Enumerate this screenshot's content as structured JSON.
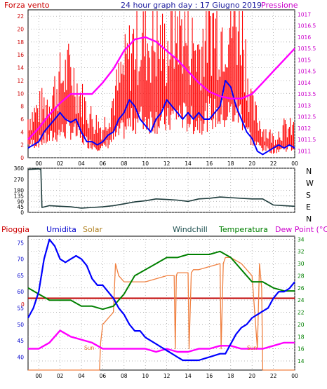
{
  "header": {
    "left": "Forza vento",
    "center": "24 hour graph day : 17 Giugno 2019",
    "right": "Pressione"
  },
  "legend": {
    "pioggia": "Pioggia",
    "umidita": "Umidita",
    "solar": "Solar",
    "windchill": "Windchill",
    "temperatura": "Temperatura",
    "dewpoint": "Dew Point (°C)"
  },
  "direction_labels": [
    "N",
    "W",
    "S",
    "E",
    "N"
  ],
  "annotations": {
    "sun1": "Sun",
    "sun2": "Sun"
  },
  "colors": {
    "wind_gust": "#ff0000",
    "wind_avg": "#0000ff",
    "pressure": "#ff00ff",
    "direction": "#1e3c3c",
    "humidity": "#0000ff",
    "solar": "#f08040",
    "temperature": "#008000",
    "dewpoint": "#ff00ff",
    "rain": "#c00000",
    "left_axis": "#cc0000",
    "right_axis": "#cc00cc",
    "temp_axis": "#008000",
    "humidity_axis": "#0000cc"
  },
  "chart_data": [
    {
      "type": "line",
      "name": "wind_pressure",
      "x_ticks": [
        "00",
        "02",
        "04",
        "06",
        "08",
        "10",
        "12",
        "14",
        "16",
        "18",
        "20",
        "22",
        "00"
      ],
      "y_left_ticks": [
        0,
        2,
        4,
        6,
        8,
        10,
        12,
        14,
        16,
        18,
        20,
        22
      ],
      "ylim_left": [
        0,
        23
      ],
      "y_right_ticks": [
        1011,
        1011.5,
        1012,
        1012.5,
        1013,
        1013.5,
        1014,
        1014.5,
        1015,
        1015.5,
        1016,
        1016.5,
        1017
      ],
      "ylim_right": [
        1010.7,
        1017.2
      ],
      "xlim": [
        -1,
        24
      ],
      "series": [
        {
          "key": "gust",
          "axis": "left",
          "x": [
            -1,
            0,
            1,
            2,
            3,
            4,
            5,
            6,
            7,
            8,
            9,
            10,
            11,
            12,
            13,
            14,
            15,
            16,
            17,
            18,
            19,
            20,
            21,
            22,
            23,
            24
          ],
          "y": [
            4,
            5,
            6,
            8,
            9,
            6,
            4,
            3,
            6,
            9,
            12,
            12,
            12,
            11,
            14,
            12,
            11,
            14,
            13,
            14,
            14,
            5,
            3,
            2,
            3,
            3
          ]
        },
        {
          "key": "avg",
          "axis": "left",
          "x": [
            -1,
            -0.5,
            0,
            0.5,
            1,
            1.5,
            2,
            2.5,
            3,
            3.5,
            4,
            4.5,
            5,
            5.5,
            6,
            6.5,
            7,
            7.5,
            8,
            8.5,
            9,
            9.5,
            10,
            10.5,
            11,
            11.5,
            12,
            12.5,
            13,
            13.5,
            14,
            14.5,
            15,
            15.5,
            16,
            16.5,
            17,
            17.5,
            18,
            18.5,
            19,
            19.5,
            20,
            20.5,
            21,
            21.5,
            22,
            22.5,
            23,
            23.5,
            24
          ],
          "y": [
            1.5,
            2,
            2.5,
            4,
            5,
            6,
            7,
            6,
            5.5,
            6,
            4,
            2.5,
            2.5,
            2,
            2.5,
            3.5,
            4,
            6,
            7,
            9,
            8,
            6,
            5,
            4,
            6,
            7,
            9,
            8,
            7,
            6,
            7,
            6,
            7,
            6,
            6,
            7,
            8,
            12,
            11,
            8,
            6,
            4,
            3,
            1,
            0.5,
            1,
            1.5,
            2,
            1.5,
            2,
            1.5
          ]
        },
        {
          "key": "pressure",
          "axis": "right",
          "x": [
            -1,
            0,
            1,
            2,
            3,
            4,
            5,
            6,
            7,
            8,
            9,
            10,
            11,
            12,
            13,
            14,
            15,
            16,
            17,
            18,
            19,
            20,
            21,
            22,
            23,
            24
          ],
          "y": [
            1011.5,
            1012,
            1012.6,
            1013.1,
            1013.5,
            1013.5,
            1013.5,
            1014,
            1014.6,
            1015.4,
            1015.9,
            1016.0,
            1015.8,
            1015.4,
            1015.0,
            1014.5,
            1014.0,
            1013.6,
            1013.4,
            1013.3,
            1013.3,
            1013.5,
            1014.0,
            1014.5,
            1015.0,
            1015.5
          ]
        }
      ]
    },
    {
      "type": "line",
      "name": "wind_direction",
      "x_ticks": [
        "00",
        "02",
        "04",
        "06",
        "08",
        "10",
        "12",
        "14",
        "16",
        "18",
        "20",
        "22",
        "00"
      ],
      "y_ticks": [
        0,
        45,
        90,
        135,
        180,
        270,
        360
      ],
      "ylim": [
        0,
        360
      ],
      "xlim": [
        -1,
        24
      ],
      "series": [
        {
          "key": "direction",
          "x": [
            -1,
            0,
            0.2,
            0.3,
            1,
            2,
            3,
            4,
            5,
            6,
            7,
            8,
            9,
            10,
            11,
            12,
            13,
            14,
            15,
            16,
            17,
            18,
            19,
            20,
            21,
            22,
            23,
            24
          ],
          "y": [
            350,
            355,
            350,
            40,
            55,
            50,
            45,
            35,
            40,
            45,
            55,
            70,
            85,
            95,
            110,
            105,
            100,
            90,
            110,
            115,
            125,
            120,
            115,
            110,
            110,
            60,
            55,
            50
          ]
        }
      ]
    },
    {
      "type": "line",
      "name": "humidity_temperature",
      "x_ticks": [
        "00",
        "02",
        "04",
        "06",
        "08",
        "10",
        "12",
        "14",
        "16",
        "18",
        "20",
        "22",
        "00"
      ],
      "y_left_ticks": [
        40,
        45,
        50,
        55,
        60,
        65,
        70,
        75
      ],
      "ylim_left": [
        36,
        77
      ],
      "y_right_ticks": [
        14,
        16,
        18,
        20,
        22,
        24,
        26,
        28,
        30,
        32,
        34
      ],
      "ylim_right": [
        12.5,
        34.5
      ],
      "xlim": [
        -1,
        24
      ],
      "series": [
        {
          "key": "humidity",
          "axis": "left",
          "x": [
            -1,
            -0.5,
            0,
            0.5,
            1,
            1.5,
            2,
            2.5,
            3,
            3.5,
            4,
            4.5,
            5,
            5.5,
            6,
            6.5,
            7,
            7.5,
            8,
            8.5,
            9,
            9.5,
            10,
            10.5,
            11,
            11.5,
            12,
            12.5,
            13,
            13.5,
            14,
            15,
            16,
            17,
            17.5,
            18,
            18.5,
            19,
            19.5,
            20,
            20.5,
            21,
            21.5,
            22,
            22.5,
            23,
            23.5,
            24
          ],
          "y": [
            52,
            55,
            60,
            70,
            76,
            74,
            70,
            69,
            70,
            71,
            70,
            68,
            64,
            62,
            62,
            60,
            58,
            55,
            53,
            50,
            48,
            48,
            46,
            45,
            44,
            43,
            42,
            41,
            40,
            39,
            39,
            39,
            40,
            41,
            41,
            44,
            47,
            49,
            50,
            52,
            53,
            54,
            55,
            58,
            60,
            60,
            61,
            63
          ]
        },
        {
          "key": "temperature",
          "axis": "right",
          "x": [
            -1,
            0,
            1,
            2,
            3,
            4,
            5,
            6,
            7,
            8,
            9,
            10,
            11,
            12,
            13,
            14,
            15,
            16,
            17,
            18,
            19,
            20,
            21,
            22,
            23,
            24
          ],
          "y": [
            26,
            25,
            24,
            24,
            24,
            23,
            23,
            22.5,
            23,
            25,
            28,
            29,
            30,
            31,
            31,
            31.5,
            31.5,
            31.5,
            32,
            31,
            29,
            27,
            27,
            26,
            25.5,
            25.5
          ]
        },
        {
          "key": "dewpoint",
          "axis": "right",
          "x": [
            -1,
            0,
            1,
            2,
            3,
            4,
            5,
            6,
            7,
            8,
            9,
            10,
            11,
            12,
            13,
            14,
            15,
            16,
            17,
            18,
            19,
            20,
            21,
            22,
            23,
            24
          ],
          "y": [
            16,
            16,
            17,
            19,
            18,
            17.5,
            17,
            16,
            16,
            16,
            16,
            16,
            15.5,
            16,
            15.5,
            15.5,
            16,
            16,
            16.5,
            16.5,
            16,
            16,
            16,
            16.5,
            17,
            17
          ]
        },
        {
          "key": "solar",
          "axis": "right",
          "x": [
            -1,
            0,
            5.7,
            5.8,
            6,
            6.5,
            7,
            7.2,
            7.5,
            8,
            9,
            10,
            11,
            12,
            12.7,
            12.8,
            12.9,
            13,
            14,
            14.1,
            14.3,
            14.5,
            15,
            16,
            17,
            17.1,
            17.3,
            17.5,
            18,
            19,
            20,
            20.5,
            20.7,
            20.9,
            21,
            22,
            23,
            24
          ],
          "y": [
            12.5,
            12.5,
            12.5,
            17,
            20,
            21,
            22,
            30,
            28,
            27,
            27,
            27,
            27.5,
            28,
            28,
            16,
            28,
            28.5,
            28.5,
            16,
            28.5,
            29,
            29,
            29.5,
            30,
            16,
            30,
            31,
            31,
            30,
            28,
            16,
            30,
            26,
            12.5,
            12.5,
            12.5,
            12.5
          ]
        },
        {
          "key": "rain",
          "axis": "left",
          "x": [
            -1,
            24
          ],
          "y": [
            58,
            58
          ]
        }
      ]
    }
  ]
}
